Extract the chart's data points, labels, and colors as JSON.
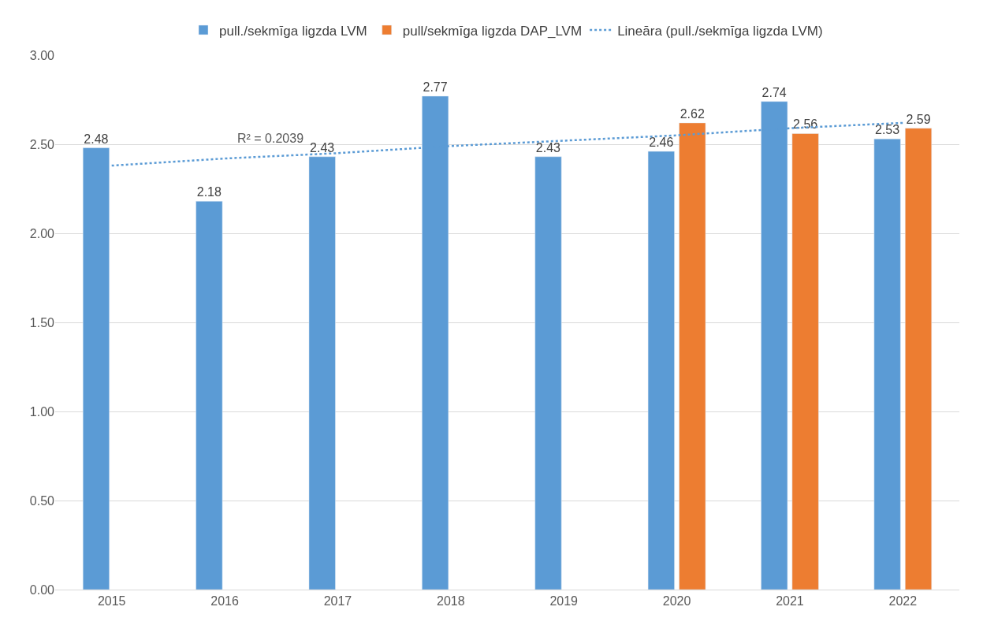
{
  "chart_data": {
    "type": "bar",
    "categories": [
      "2015",
      "2016",
      "2017",
      "2018",
      "2019",
      "2020",
      "2021",
      "2022"
    ],
    "series": [
      {
        "name": "pull./sekmīga ligzda LVM",
        "color": "#5b9bd5",
        "values": [
          2.48,
          2.18,
          2.43,
          2.77,
          2.43,
          2.46,
          2.74,
          2.53
        ],
        "value_labels": [
          "2.48",
          "2.18",
          "2.43",
          "2.77",
          "2.43",
          "2.46",
          "2.74",
          "2.53"
        ]
      },
      {
        "name": "pull/sekmīga ligzda DAP_LVM",
        "color": "#ed7d31",
        "values": [
          null,
          null,
          null,
          null,
          null,
          2.62,
          2.56,
          2.59
        ],
        "value_labels": [
          null,
          null,
          null,
          null,
          null,
          "2.62",
          "2.56",
          "2.59"
        ]
      },
      {
        "name": "Lineāra (pull./sekmīga ligzda LVM)",
        "type": "line",
        "color": "#5b9bd5",
        "line_style": "dotted",
        "marker": "none",
        "values": [
          2.38,
          2.42,
          2.45,
          2.49,
          2.52,
          2.55,
          2.59,
          2.62
        ]
      }
    ],
    "ylim": [
      0,
      3
    ],
    "yticks": [
      {
        "value": 0,
        "label": "0.00"
      },
      {
        "value": 0.5,
        "label": "0.50"
      },
      {
        "value": 1,
        "label": "1.00"
      },
      {
        "value": 1.5,
        "label": "1.50"
      },
      {
        "value": 2,
        "label": "2.00"
      },
      {
        "value": 2.5,
        "label": "2.50"
      },
      {
        "value": 3,
        "label": "3.00"
      }
    ],
    "grid": "y",
    "legend": "top",
    "annotations": [
      "R² = 0.2039"
    ]
  }
}
